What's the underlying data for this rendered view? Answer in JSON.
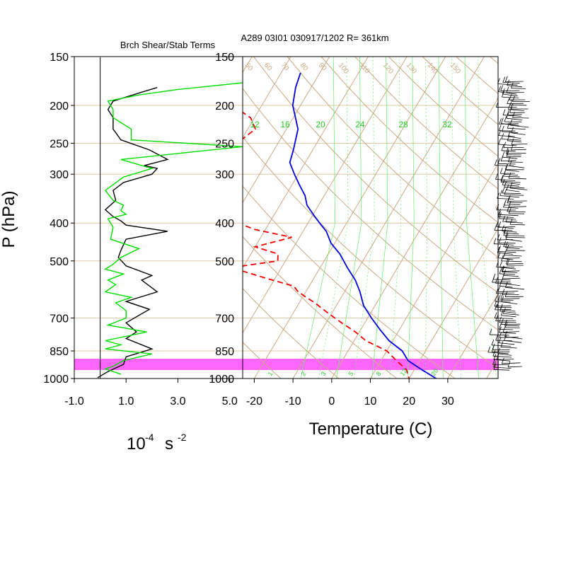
{
  "chart_data": [
    {
      "type": "line",
      "title": "Brch Shear/Stab Terms",
      "ylabel": "P (hPa)",
      "units_label": "10",
      "units_exp": "-4",
      "units_unit": "s",
      "units_unit_exp": "-2",
      "y_ticks": [
        "150",
        "200",
        "250",
        "300",
        "400",
        "500",
        "700",
        "850",
        "1000"
      ],
      "x_ticks": [
        "-1.0",
        "1.0",
        "3.0",
        "5.0"
      ],
      "xlim": [
        -1.0,
        5.5
      ],
      "ylim_hpa": [
        150,
        1000
      ],
      "series": [
        {
          "color": "#000000",
          "x": [
            2.2,
            1.6,
            0.5,
            0.3,
            0.5,
            0.5,
            0.8,
            1.9,
            2.6,
            1.7,
            2.2,
            2.0,
            0.9,
            0.5,
            0.6,
            0.2,
            0.5,
            0.8,
            1.0,
            2.6,
            1.0,
            0.8,
            0.7,
            1.0,
            2.0,
            1.6,
            2.2,
            1.0,
            1.9,
            1.0,
            1.4,
            1.0,
            2.0,
            1.0,
            0.9,
            0.3,
            -0.1
          ],
          "p": [
            180,
            185,
            195,
            205,
            215,
            230,
            245,
            260,
            275,
            285,
            290,
            300,
            315,
            330,
            350,
            370,
            385,
            395,
            405,
            420,
            440,
            470,
            490,
            515,
            545,
            560,
            600,
            635,
            665,
            720,
            760,
            790,
            840,
            880,
            920,
            960,
            995
          ]
        },
        {
          "color": "#00dd00",
          "x": [
            5.5,
            3.0,
            1.5,
            0.3,
            0.5,
            0.5,
            1.2,
            1.2,
            5.5,
            3.8,
            0.8,
            2.0,
            0.9,
            0.2,
            0.5,
            0.9,
            0.8,
            1.0,
            0.3,
            0.5,
            0.4,
            1.5,
            0.8,
            0.5,
            0.2,
            0.9,
            0.3,
            0.6,
            0.2,
            1.2,
            0.6,
            1.0,
            1.0,
            0.3,
            1.8,
            0.2,
            0.8,
            0.2,
            2.0,
            0.9,
            0.5,
            0.2,
            0.8
          ],
          "p": [
            175,
            182,
            188,
            195,
            205,
            215,
            230,
            245,
            255,
            262,
            275,
            290,
            305,
            330,
            350,
            360,
            372,
            380,
            390,
            410,
            440,
            465,
            490,
            510,
            525,
            540,
            560,
            575,
            600,
            620,
            640,
            670,
            700,
            730,
            760,
            800,
            820,
            840,
            865,
            900,
            930,
            945,
            975
          ]
        }
      ]
    },
    {
      "type": "line",
      "title": "A289 03I01 030917/1202 R= 361km",
      "xlabel": "Temperature (C)",
      "y_ticks": [
        "150",
        "200",
        "250",
        "300",
        "400",
        "500",
        "700",
        "850",
        "1000"
      ],
      "x_ticks": [
        "-20",
        "-10",
        "0",
        "10",
        "20",
        "30"
      ],
      "xlim_surface_c": [
        -23,
        43
      ],
      "skew_reference": "isotherm shifted right 60 C per decade of log pressure",
      "dry_adiabat_labels": [
        "50",
        "60",
        "70",
        "80",
        "90",
        "100",
        "110",
        "120",
        "130",
        "140",
        "150"
      ],
      "mixing_ratio_labels_top": [
        "12",
        "16",
        "20",
        "24",
        "28",
        "32"
      ],
      "mixing_ratio_labels_bottom": [
        "1",
        "2",
        "3",
        "5",
        "8",
        "12",
        "20"
      ],
      "isotherm_labels_right": [
        "-2",
        "-1",
        "0",
        "1",
        "2",
        "3"
      ],
      "highlight_band_hpa": [
        965,
        1005
      ],
      "series": [
        {
          "name": "",
          "color": "#0000dd",
          "style": "solid",
          "p": [
            165,
            180,
            200,
            230,
            260,
            280,
            300,
            320,
            340,
            360,
            380,
            400,
            420,
            450,
            480,
            520,
            560,
            600,
            650,
            700,
            750,
            800,
            850,
            900,
            950,
            1000
          ],
          "t": [
            -55,
            -54,
            -52,
            -47,
            -45,
            -44,
            -41,
            -38,
            -35,
            -33,
            -30,
            -27,
            -24,
            -21,
            -17,
            -13,
            -9,
            -6,
            -3,
            1,
            5,
            9,
            14,
            17,
            22,
            27
          ]
        },
        {
          "name": "",
          "color": "#ee0000",
          "style": "dashed",
          "p": [
            195,
            215,
            230,
            245,
            255,
            265,
            275,
            290,
            300,
            330,
            360,
            385,
            400,
            415,
            435,
            460,
            480,
            500,
            520,
            555,
            580,
            600,
            640,
            680,
            720,
            760,
            800,
            850,
            900,
            950,
            1000
          ],
          "t": [
            -70,
            -61,
            -58,
            -60,
            -63,
            -70,
            -78,
            -80,
            -76,
            -68,
            -57,
            -53,
            -48,
            -43,
            -32,
            -40,
            -33,
            -32,
            -43,
            -32,
            -24,
            -22,
            -16,
            -11,
            -6,
            -1,
            3,
            10,
            14,
            18,
            20
          ]
        }
      ]
    }
  ]
}
